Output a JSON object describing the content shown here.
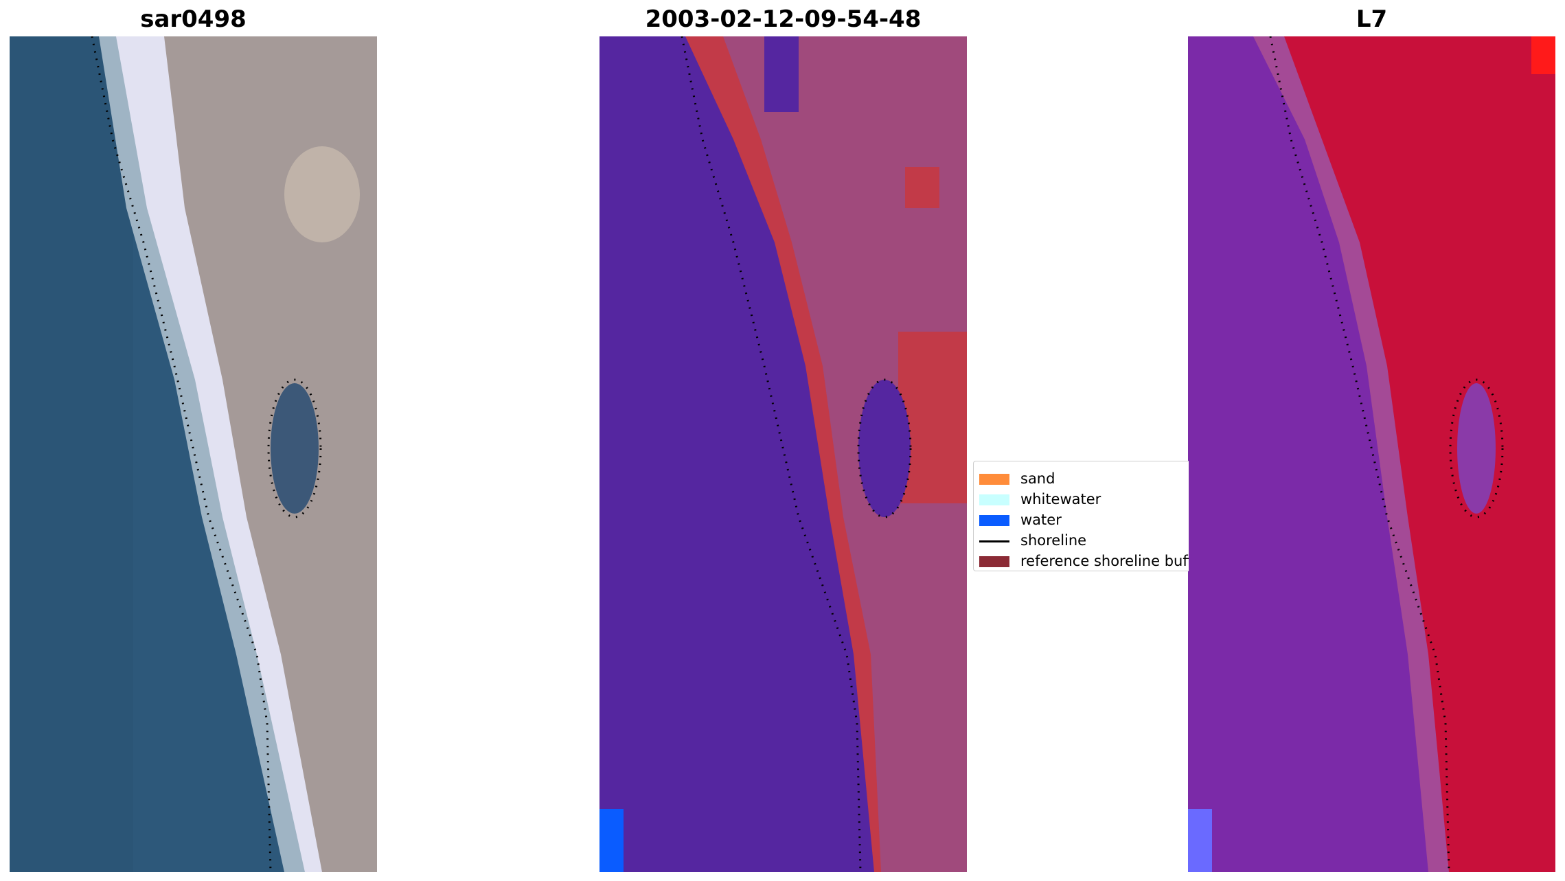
{
  "panels": [
    {
      "title": "sar0498"
    },
    {
      "title": "2003-02-12-09-54-48"
    },
    {
      "title": "L7"
    }
  ],
  "legend": {
    "items": [
      {
        "label": "sand",
        "color": "#ff8c3a"
      },
      {
        "label": "whitewater",
        "color": "#c8ffff"
      },
      {
        "label": "water",
        "color": "#0a5cff"
      },
      {
        "label": "shoreline",
        "color": "#000000"
      },
      {
        "label": "reference shoreline buffer",
        "color": "#8b2a35"
      }
    ]
  },
  "colors": {
    "rgb_water": "#2c5676",
    "rgb_beach": "#dcdcf0",
    "rgb_land": "#a49c98",
    "class_water": "#5526a0",
    "class_sand": "#c23a48",
    "class_land": "#a04a7c",
    "ndwi_water": "#7b2aa8",
    "ndwi_land": "#c8103a"
  }
}
